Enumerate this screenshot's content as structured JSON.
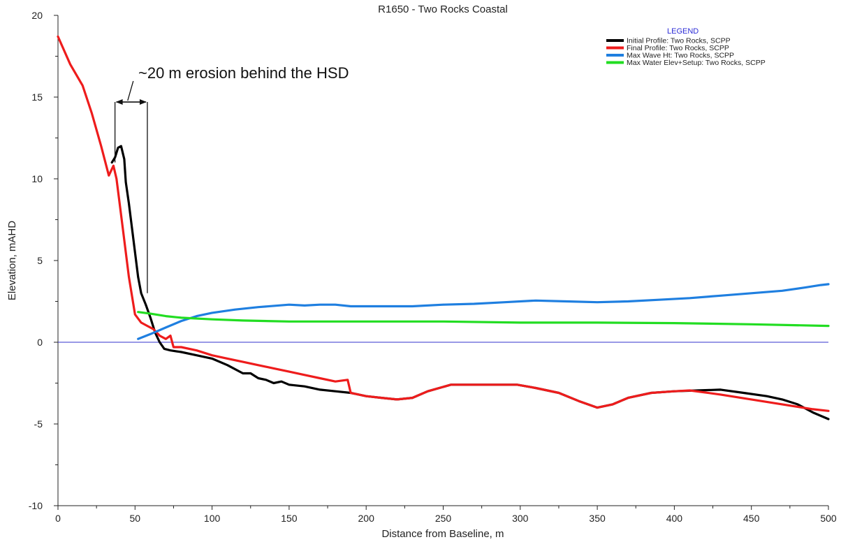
{
  "chart_data": {
    "type": "line",
    "title": "R1650 - Two Rocks Coastal",
    "xlabel": "Distance from Baseline, m",
    "ylabel": "Elevation, mAHD",
    "xlim": [
      0,
      500
    ],
    "ylim": [
      -10,
      20
    ],
    "x_ticks": [
      0,
      50,
      100,
      150,
      200,
      250,
      300,
      350,
      400,
      450,
      500
    ],
    "y_ticks": [
      -10,
      -5,
      0,
      5,
      10,
      15,
      20
    ],
    "grid": false,
    "legend_title": "LEGEND",
    "legend_position": "top-right",
    "reference_line": {
      "y": 0,
      "color": "#3333cc"
    },
    "annotation": {
      "text": "~20 m erosion behind the HSD",
      "x_from": 37,
      "x_to": 58,
      "y_top": 14.7,
      "y_bottom": 11
    },
    "series": [
      {
        "name": "Initial Profile: Two Rocks, SCPP",
        "color": "#000000",
        "points": [
          [
            35,
            11
          ],
          [
            37,
            11.3
          ],
          [
            39,
            11.9
          ],
          [
            41,
            12.0
          ],
          [
            43,
            11.2
          ],
          [
            44,
            9.8
          ],
          [
            46,
            8.5
          ],
          [
            48,
            7
          ],
          [
            50,
            5.5
          ],
          [
            52,
            4
          ],
          [
            54,
            3
          ],
          [
            57,
            2.3
          ],
          [
            60,
            1.5
          ],
          [
            63,
            0.6
          ],
          [
            66,
            0
          ],
          [
            69,
            -0.4
          ],
          [
            73,
            -0.5
          ],
          [
            80,
            -0.6
          ],
          [
            90,
            -0.8
          ],
          [
            100,
            -1
          ],
          [
            110,
            -1.4
          ],
          [
            120,
            -1.9
          ],
          [
            125,
            -1.9
          ],
          [
            130,
            -2.2
          ],
          [
            135,
            -2.3
          ],
          [
            140,
            -2.5
          ],
          [
            145,
            -2.4
          ],
          [
            150,
            -2.6
          ],
          [
            160,
            -2.7
          ],
          [
            170,
            -2.9
          ],
          [
            180,
            -3.0
          ],
          [
            190,
            -3.1
          ],
          [
            200,
            -3.3
          ],
          [
            210,
            -3.4
          ],
          [
            220,
            -3.5
          ],
          [
            230,
            -3.4
          ],
          [
            240,
            -3.0
          ],
          [
            255,
            -2.6
          ],
          [
            270,
            -2.6
          ],
          [
            285,
            -2.6
          ],
          [
            298,
            -2.6
          ],
          [
            310,
            -2.8
          ],
          [
            325,
            -3.1
          ],
          [
            338,
            -3.6
          ],
          [
            350,
            -4.0
          ],
          [
            360,
            -3.8
          ],
          [
            370,
            -3.4
          ],
          [
            385,
            -3.1
          ],
          [
            400,
            -3.0
          ],
          [
            415,
            -2.95
          ],
          [
            430,
            -2.9
          ],
          [
            445,
            -3.1
          ],
          [
            460,
            -3.3
          ],
          [
            470,
            -3.5
          ],
          [
            480,
            -3.8
          ],
          [
            490,
            -4.3
          ],
          [
            500,
            -4.7
          ]
        ]
      },
      {
        "name": "Final Profile: Two Rocks, SCPP",
        "color": "#ee1c1c",
        "points": [
          [
            0,
            18.7
          ],
          [
            8,
            17
          ],
          [
            16,
            15.7
          ],
          [
            22,
            14
          ],
          [
            28,
            12
          ],
          [
            33,
            10.2
          ],
          [
            36,
            10.8
          ],
          [
            38,
            10.0
          ],
          [
            42,
            7
          ],
          [
            46,
            4
          ],
          [
            50,
            1.7
          ],
          [
            54,
            1.2
          ],
          [
            58,
            1.0
          ],
          [
            62,
            0.8
          ],
          [
            66,
            0.4
          ],
          [
            70,
            0.2
          ],
          [
            73,
            0.4
          ],
          [
            75,
            -0.3
          ],
          [
            80,
            -0.3
          ],
          [
            90,
            -0.5
          ],
          [
            100,
            -0.8
          ],
          [
            110,
            -1.0
          ],
          [
            120,
            -1.2
          ],
          [
            130,
            -1.4
          ],
          [
            140,
            -1.6
          ],
          [
            150,
            -1.8
          ],
          [
            160,
            -2.0
          ],
          [
            170,
            -2.2
          ],
          [
            180,
            -2.4
          ],
          [
            188,
            -2.3
          ],
          [
            190,
            -3.1
          ],
          [
            200,
            -3.3
          ],
          [
            210,
            -3.4
          ],
          [
            220,
            -3.5
          ],
          [
            230,
            -3.4
          ],
          [
            240,
            -3.0
          ],
          [
            255,
            -2.6
          ],
          [
            270,
            -2.6
          ],
          [
            285,
            -2.6
          ],
          [
            298,
            -2.6
          ],
          [
            310,
            -2.8
          ],
          [
            325,
            -3.1
          ],
          [
            338,
            -3.6
          ],
          [
            350,
            -4.0
          ],
          [
            360,
            -3.8
          ],
          [
            370,
            -3.4
          ],
          [
            385,
            -3.1
          ],
          [
            400,
            -3.0
          ],
          [
            410,
            -2.95
          ],
          [
            430,
            -3.2
          ],
          [
            450,
            -3.5
          ],
          [
            470,
            -3.8
          ],
          [
            490,
            -4.1
          ],
          [
            500,
            -4.2
          ]
        ]
      },
      {
        "name": "Max Wave Ht: Two Rocks, SCPP",
        "color": "#1f7fe0",
        "points": [
          [
            52,
            0.2
          ],
          [
            60,
            0.5
          ],
          [
            70,
            0.9
          ],
          [
            80,
            1.3
          ],
          [
            90,
            1.6
          ],
          [
            100,
            1.8
          ],
          [
            115,
            2.0
          ],
          [
            130,
            2.15
          ],
          [
            150,
            2.3
          ],
          [
            160,
            2.25
          ],
          [
            170,
            2.3
          ],
          [
            180,
            2.3
          ],
          [
            190,
            2.2
          ],
          [
            210,
            2.2
          ],
          [
            230,
            2.2
          ],
          [
            250,
            2.3
          ],
          [
            270,
            2.35
          ],
          [
            290,
            2.45
          ],
          [
            310,
            2.55
          ],
          [
            330,
            2.5
          ],
          [
            350,
            2.45
          ],
          [
            370,
            2.5
          ],
          [
            390,
            2.6
          ],
          [
            410,
            2.7
          ],
          [
            430,
            2.85
          ],
          [
            450,
            3.0
          ],
          [
            470,
            3.15
          ],
          [
            485,
            3.35
          ],
          [
            495,
            3.5
          ],
          [
            500,
            3.55
          ]
        ]
      },
      {
        "name": "Max Water Elev+Setup: Two Rocks, SCPP",
        "color": "#22dd22",
        "points": [
          [
            52,
            1.85
          ],
          [
            60,
            1.75
          ],
          [
            70,
            1.6
          ],
          [
            80,
            1.5
          ],
          [
            100,
            1.4
          ],
          [
            120,
            1.33
          ],
          [
            150,
            1.27
          ],
          [
            175,
            1.27
          ],
          [
            200,
            1.27
          ],
          [
            250,
            1.27
          ],
          [
            300,
            1.2
          ],
          [
            350,
            1.2
          ],
          [
            400,
            1.17
          ],
          [
            450,
            1.1
          ],
          [
            500,
            1.0
          ]
        ]
      }
    ]
  }
}
